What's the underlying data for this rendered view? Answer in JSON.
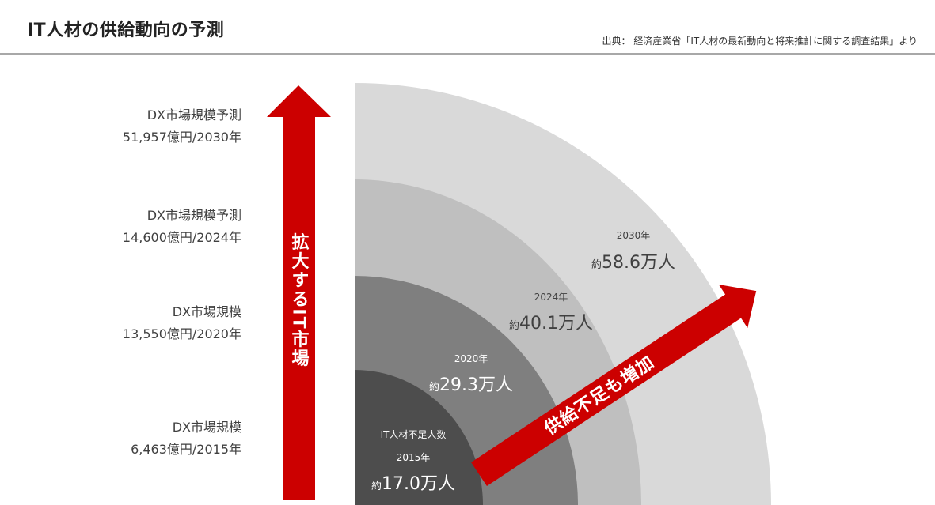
{
  "header": {
    "title": "IT人材の供給動向の予測",
    "source": "出典： 経済産業省「IT人材の最新動向と将来推計に関する調査結果」より"
  },
  "market": [
    {
      "label": "DX市場規模予測",
      "value": "51,957億円/2030年"
    },
    {
      "label": "DX市場規模予測",
      "value": "14,600億円/2024年"
    },
    {
      "label": "DX市場規模",
      "value": "13,550億円/2020年"
    },
    {
      "label": "DX市場規模",
      "value": "6,463億円/2015年"
    }
  ],
  "market_arrow": {
    "label": "拡大するIT市場"
  },
  "supply_arrow": {
    "label": "供給不足も増加"
  },
  "shortage_title": "IT人材不足人数",
  "shortage": [
    {
      "year": "2015年",
      "prefix": "約",
      "value": "17.0万人"
    },
    {
      "year": "2020年",
      "prefix": "約",
      "value": "29.3万人"
    },
    {
      "year": "2024年",
      "prefix": "約",
      "value": "40.1万人"
    },
    {
      "year": "2030年",
      "prefix": "約",
      "value": "58.6万人"
    }
  ],
  "colors": {
    "accent": "#cc0000",
    "ring_2030": "#d9d9d9",
    "ring_2024": "#bfbfbf",
    "ring_2020": "#7f7f7f",
    "ring_2015": "#4d4d4d"
  }
}
